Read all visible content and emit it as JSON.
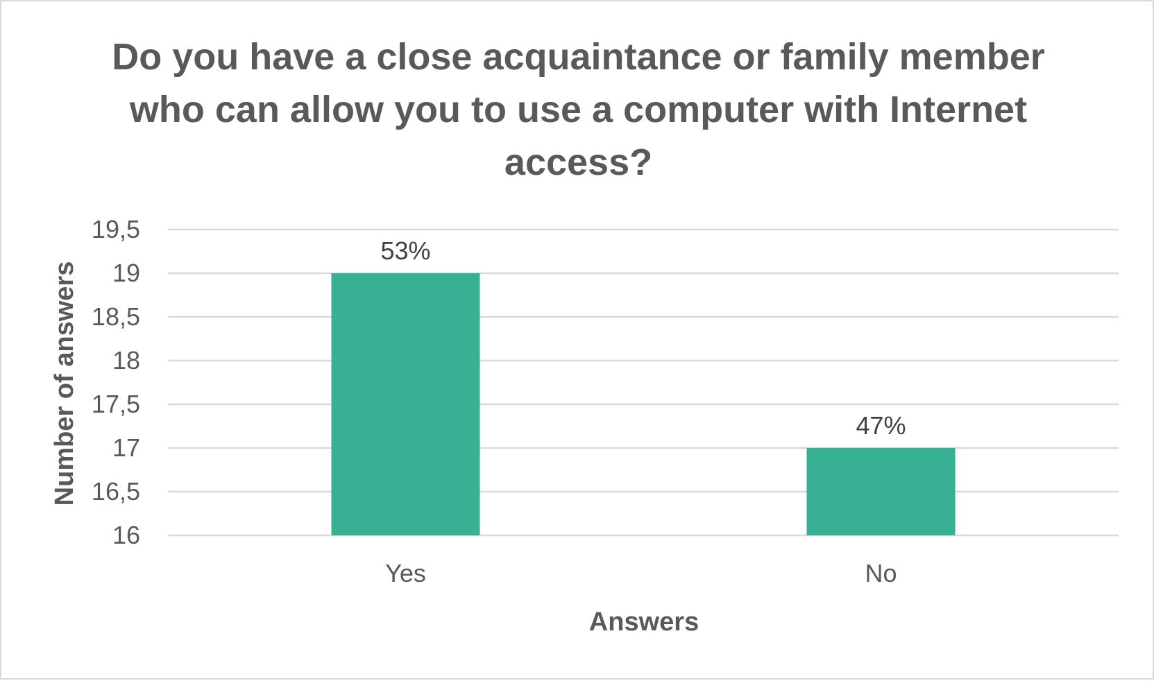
{
  "chart_data": {
    "type": "bar",
    "title": "Do you have a close acquaintance or family member who can allow you to use a computer with Internet access?",
    "xlabel": "Answers",
    "ylabel": "Number of answers",
    "categories": [
      "Yes",
      "No"
    ],
    "values": [
      19,
      17
    ],
    "data_labels": [
      "53%",
      "47%"
    ],
    "ylim": [
      16,
      19.5
    ],
    "yticks": [
      16,
      16.5,
      17,
      17.5,
      18,
      18.5,
      19,
      19.5
    ],
    "ytick_labels": [
      "16",
      "16,5",
      "17",
      "17,5",
      "18",
      "18,5",
      "19",
      "19,5"
    ],
    "grid": true,
    "legend": "none",
    "colors": {
      "bar": "#38b094",
      "grid": "#d9d9d9",
      "text": "#595959"
    }
  }
}
